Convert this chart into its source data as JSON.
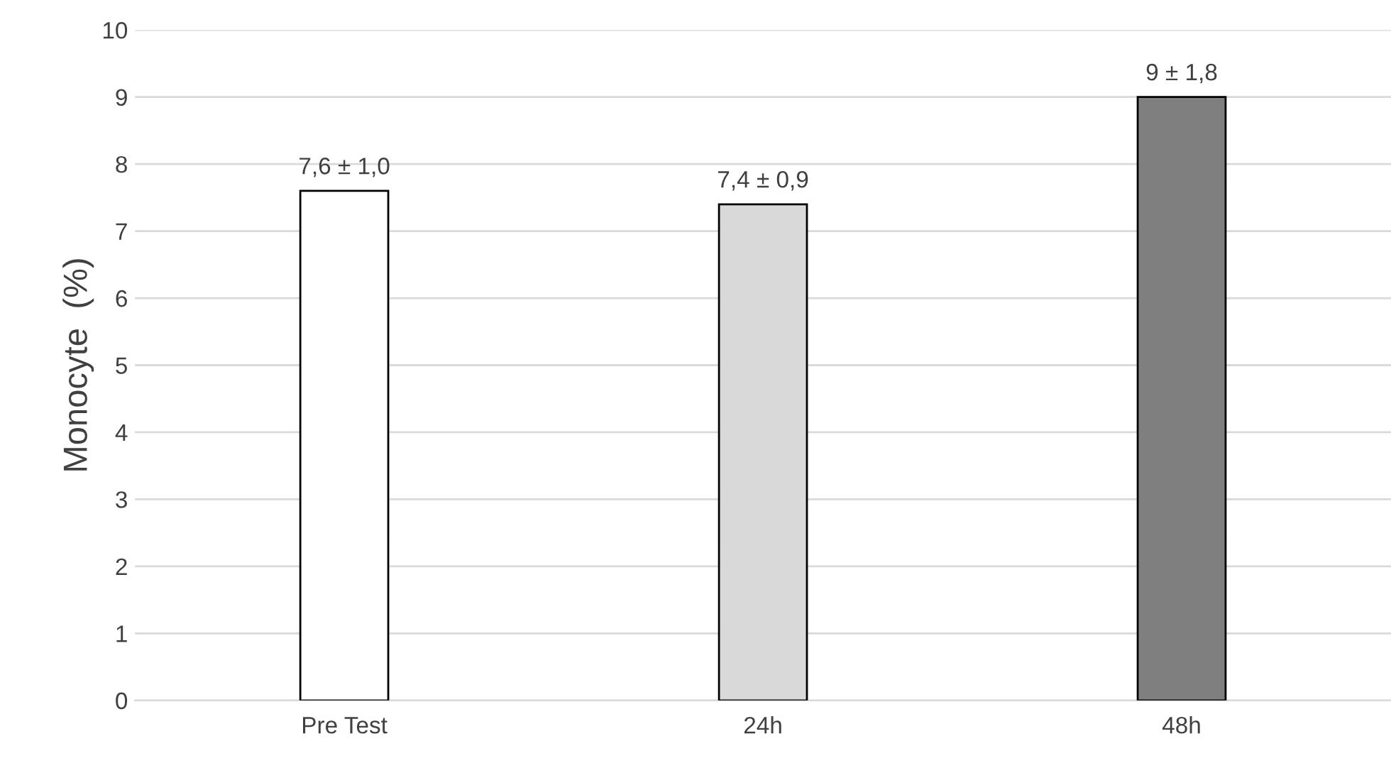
{
  "chart_data": {
    "type": "bar",
    "ylabel": "Monocyte  (%)",
    "categories": [
      "Pre Test",
      "24h",
      "48h"
    ],
    "values": [
      7.6,
      7.4,
      9
    ],
    "colors": [
      "#ffffff",
      "#d9d9d9",
      "#7f7f7f"
    ],
    "value_labels": [
      "7,6 ± 1,0",
      "7,4 ± 0,9",
      "9 ± 1,8"
    ],
    "ylim": [
      0,
      10
    ],
    "yticks": [
      0,
      1,
      2,
      3,
      4,
      5,
      6,
      7,
      8,
      9,
      10
    ],
    "grid": "y"
  }
}
